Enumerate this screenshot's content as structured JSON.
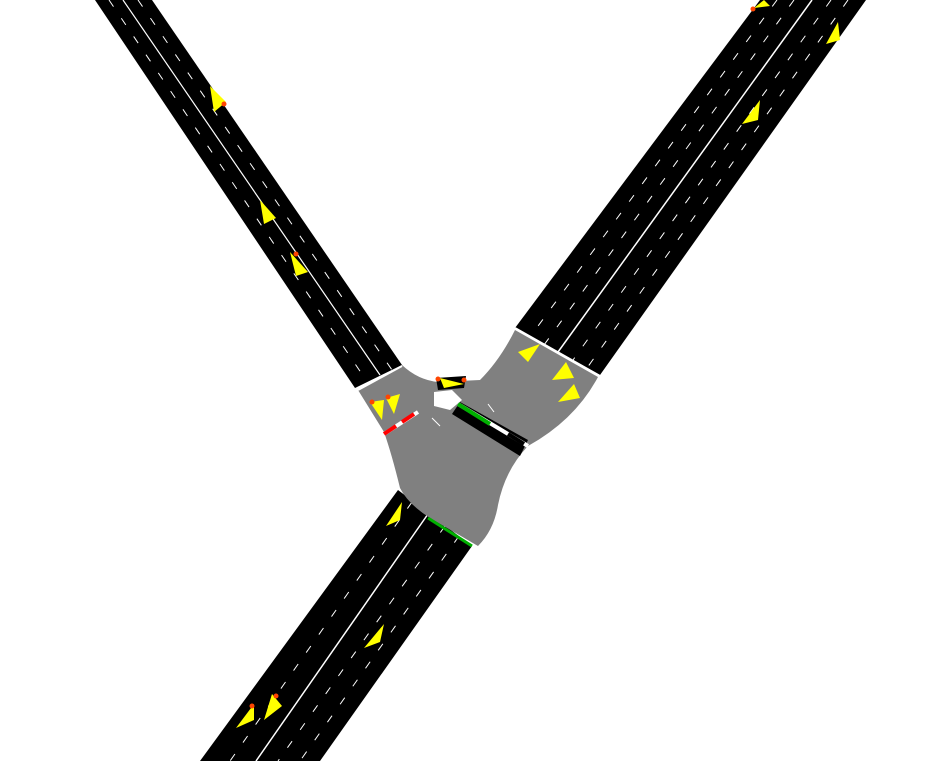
{
  "scene": {
    "background_color": "#ffffff",
    "road_color": "#000000",
    "junction_color": "#808080",
    "lane_marking_color": "#ffffff",
    "vehicle_color": "#ffff00",
    "brake_light_color": "#ff4500",
    "signal_colors": {
      "red": "#ff0000",
      "green": "#00b000"
    }
  },
  "roads": [
    {
      "name": "northwest-road"
    },
    {
      "name": "northeast-road"
    },
    {
      "name": "southwest-road"
    }
  ],
  "vehicles": [
    {
      "name": "vehicle-nw-1",
      "braking": true
    },
    {
      "name": "vehicle-nw-2",
      "braking": false
    },
    {
      "name": "vehicle-nw-3",
      "braking": true
    },
    {
      "name": "vehicle-nw-4",
      "braking": true
    },
    {
      "name": "vehicle-nw-5",
      "braking": true
    },
    {
      "name": "vehicle-ne-1",
      "braking": true
    },
    {
      "name": "vehicle-ne-2",
      "braking": false
    },
    {
      "name": "vehicle-ne-3",
      "braking": false
    },
    {
      "name": "vehicle-ne-4",
      "braking": false
    },
    {
      "name": "vehicle-ne-5",
      "braking": false
    },
    {
      "name": "vehicle-ne-6",
      "braking": false
    },
    {
      "name": "vehicle-junction-1",
      "braking": true
    },
    {
      "name": "vehicle-sw-1",
      "braking": false
    },
    {
      "name": "vehicle-sw-2",
      "braking": false
    },
    {
      "name": "vehicle-sw-3",
      "braking": true
    },
    {
      "name": "vehicle-sw-4",
      "braking": true
    }
  ],
  "signals": [
    {
      "name": "signal-nw-approach",
      "state": "red"
    },
    {
      "name": "signal-ne-approach",
      "state": "green"
    },
    {
      "name": "signal-sw-approach",
      "state": "green"
    }
  ]
}
